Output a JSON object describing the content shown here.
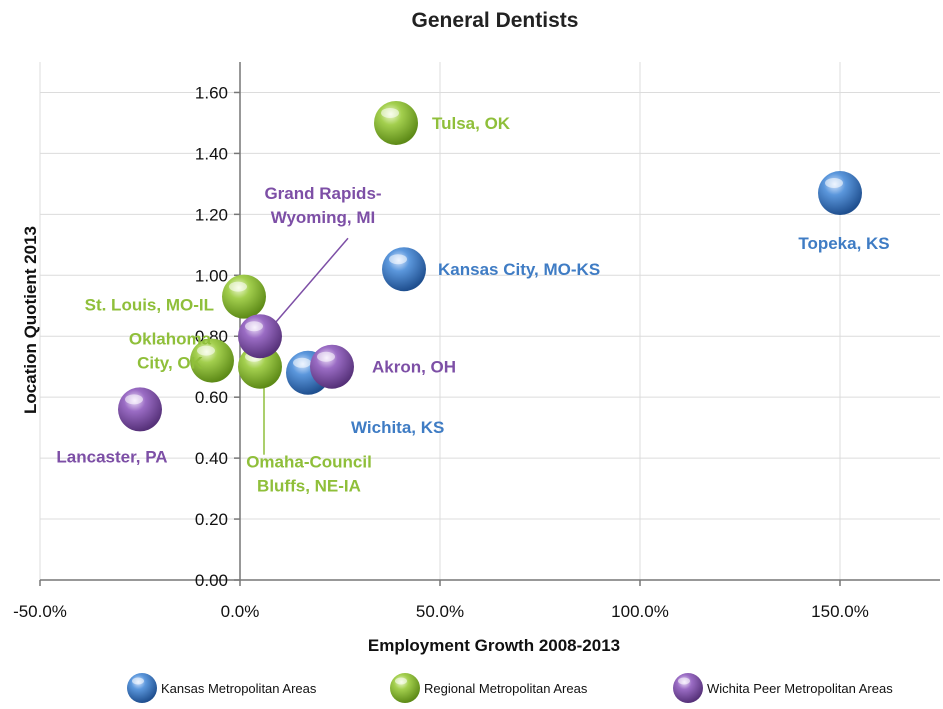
{
  "chart_data": {
    "type": "scatter",
    "title": "General Dentists",
    "xlabel": "Employment Growth 2008-2013",
    "ylabel": "Location Quotient 2013",
    "xlim": [
      -0.5,
      1.75
    ],
    "ylim": [
      0,
      1.7
    ],
    "x_ticks": [
      "-50.0%",
      "0.0%",
      "50.0%",
      "100.0%",
      "150.0%"
    ],
    "y_ticks": [
      "0.00",
      "0.20",
      "0.40",
      "0.60",
      "0.80",
      "1.00",
      "1.20",
      "1.40",
      "1.60"
    ],
    "grid": true,
    "legend_position": "bottom",
    "series": [
      {
        "name": "Kansas Metropolitan Areas",
        "color": "#3f7cc4",
        "points": [
          {
            "label": "Topeka, KS",
            "x": 1.5,
            "y": 1.27
          },
          {
            "label": "Kansas City, MO-KS",
            "x": 0.41,
            "y": 1.02
          },
          {
            "label": "Wichita, KS",
            "x": 0.17,
            "y": 0.68
          }
        ]
      },
      {
        "name": "Regional Metropolitan Areas",
        "color": "#8fbf3a",
        "points": [
          {
            "label": "Tulsa, OK",
            "x": 0.39,
            "y": 1.5
          },
          {
            "label": "St. Louis, MO-IL",
            "x": 0.01,
            "y": 0.93
          },
          {
            "label": "Oklahoma City, OK",
            "x": -0.07,
            "y": 0.72
          },
          {
            "label": "Omaha-Council Bluffs, NE-IA",
            "x": 0.05,
            "y": 0.7
          }
        ]
      },
      {
        "name": "Wichita Peer Metropolitan Areas",
        "color": "#8a5bb0",
        "points": [
          {
            "label": "Grand Rapids-Wyoming, MI",
            "x": 0.05,
            "y": 0.8
          },
          {
            "label": "Akron, OH",
            "x": 0.23,
            "y": 0.7
          },
          {
            "label": "Lancaster, PA",
            "x": -0.25,
            "y": 0.56
          }
        ]
      }
    ]
  }
}
